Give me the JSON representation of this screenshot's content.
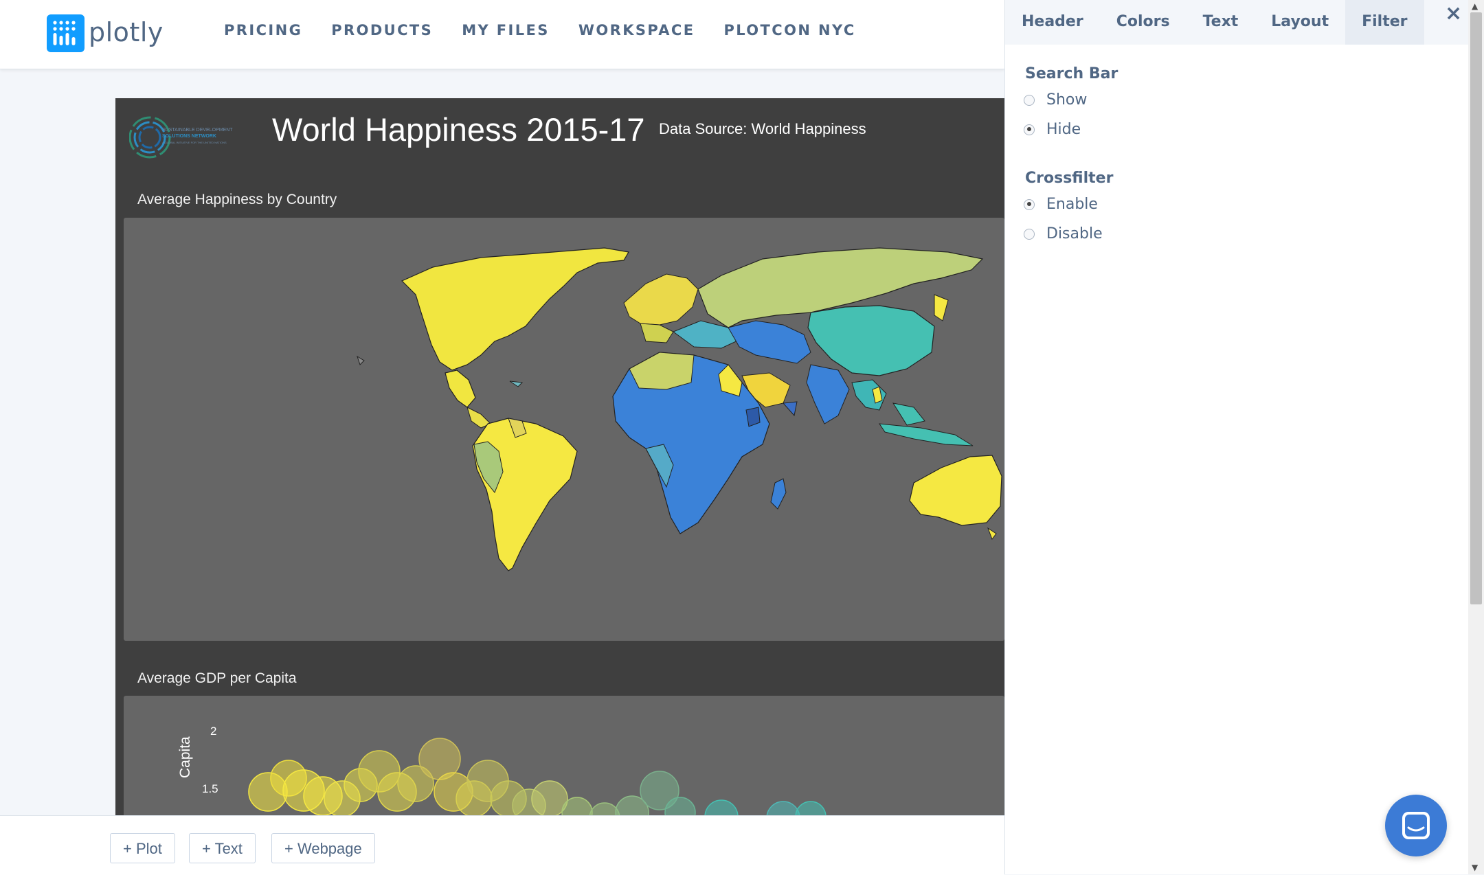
{
  "brand": {
    "name": "plotly"
  },
  "nav": {
    "items": [
      "PRICING",
      "PRODUCTS",
      "MY FILES",
      "WORKSPACE",
      "PLOTCON NYC"
    ]
  },
  "dashboard": {
    "title": "World Happiness 2015-17",
    "source": "Data Source: World Happiness",
    "logo_lines": [
      "SUSTAINABLE DEVELOPMENT",
      "SOLUTIONS NETWORK",
      "A GLOBAL INITIATIVE FOR THE UNITED NATIONS"
    ],
    "map_panel": {
      "title": "Average Happiness by Country"
    },
    "scatter_panel": {
      "title": "Average GDP per Capita",
      "ylabel": "Capita",
      "yticks": [
        "2",
        "1.5"
      ]
    }
  },
  "bottom_bar": {
    "buttons": [
      "+ Plot",
      "+ Text",
      "+ Webpage"
    ]
  },
  "settings_panel": {
    "tabs": [
      "Header",
      "Colors",
      "Text",
      "Layout",
      "Filter"
    ],
    "active_tab": "Filter",
    "close_label": "×",
    "search_bar": {
      "title": "Search Bar",
      "options": [
        "Show",
        "Hide"
      ],
      "selected": "Hide"
    },
    "crossfilter": {
      "title": "Crossfilter",
      "options": [
        "Enable",
        "Disable"
      ],
      "selected": "Enable"
    }
  },
  "chart_data": {
    "type": "scatter",
    "title": "Average GDP per Capita",
    "ylabel": "Capita",
    "yticks": [
      2,
      1.5
    ],
    "ylim": [
      1.35,
      2.1
    ]
  },
  "colors": {
    "accent": "#119dff",
    "nav_text": "#506784",
    "dashboard_bg": "#3f3f3f",
    "panel_bg": "#666666",
    "chat_button": "#3c7bd6",
    "happiness_high": "#f5e842",
    "happiness_mid": "#45c0b2",
    "happiness_low": "#3b82d8"
  },
  "icons": {
    "close": "close-icon",
    "chat": "chat-icon",
    "logo": "plotly-logo-icon"
  }
}
